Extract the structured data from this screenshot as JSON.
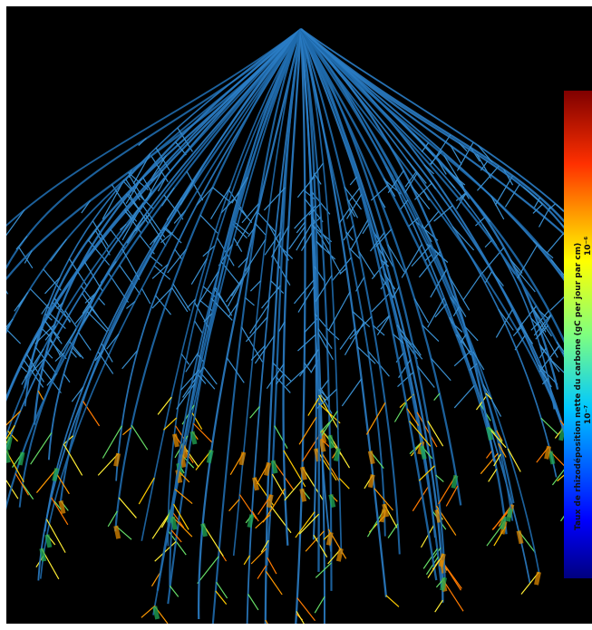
{
  "colorbar": {
    "label": "Taux de rhizodéposition nette du carbone (gC per jour par cm)",
    "ticks": [
      "10⁻⁶",
      "10⁻⁷"
    ]
  }
}
